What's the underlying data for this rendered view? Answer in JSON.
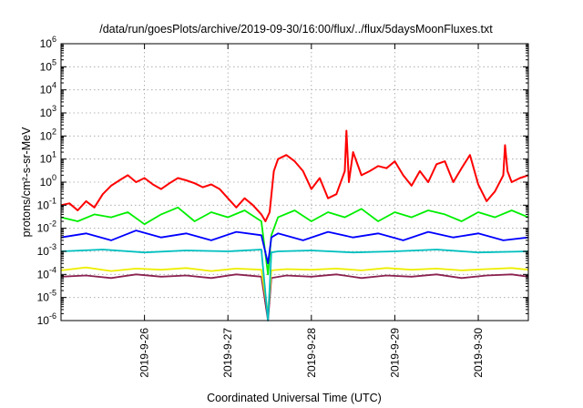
{
  "chart_data": {
    "type": "line",
    "title": "/data/run/goesPlots/archive/2019-09-30/16:00/flux/../flux/5daysMoonFluxes.txt",
    "xlabel": "Coordinated Universal Time (UTC)",
    "ylabel": "protons/cm²-s-sr-MeV",
    "y_scale": "log",
    "ylim": [
      1e-06,
      1000000.0
    ],
    "xlim": [
      0,
      5.6
    ],
    "x_tick_labels": [
      "2019-9-26",
      "2019-9-27",
      "2019-9-28",
      "2019-9-29",
      "2019-9-30"
    ],
    "x_tick_positions": [
      1,
      2,
      3,
      4,
      5
    ],
    "y_tick_exponents": [
      -6,
      -5,
      -4,
      -3,
      -2,
      -1,
      0,
      1,
      2,
      3,
      4,
      5,
      6
    ],
    "grid": true,
    "legend": "none",
    "series": [
      {
        "color": "#ff0000",
        "x": [
          0,
          0.1,
          0.2,
          0.3,
          0.4,
          0.5,
          0.6,
          0.7,
          0.8,
          0.9,
          1.0,
          1.1,
          1.2,
          1.3,
          1.4,
          1.5,
          1.6,
          1.7,
          1.8,
          1.9,
          2.0,
          2.1,
          2.2,
          2.3,
          2.4,
          2.45,
          2.5,
          2.55,
          2.6,
          2.7,
          2.8,
          2.9,
          3.0,
          3.1,
          3.2,
          3.3,
          3.4,
          3.42,
          3.45,
          3.5,
          3.6,
          3.7,
          3.8,
          3.9,
          4.0,
          4.1,
          4.2,
          4.3,
          4.4,
          4.5,
          4.6,
          4.7,
          4.8,
          4.9,
          5.0,
          5.1,
          5.2,
          5.3,
          5.32,
          5.35,
          5.4,
          5.5,
          5.6
        ],
        "values": [
          0.1,
          0.12,
          0.06,
          0.15,
          0.08,
          0.3,
          0.7,
          1.2,
          2.0,
          1.0,
          1.5,
          0.8,
          0.5,
          0.9,
          1.5,
          1.2,
          0.9,
          0.6,
          0.8,
          0.5,
          0.2,
          0.08,
          0.2,
          0.1,
          0.04,
          0.02,
          0.05,
          3.0,
          10.0,
          15.0,
          8.0,
          3.0,
          0.5,
          1.5,
          0.2,
          0.3,
          3.0,
          170.0,
          1.0,
          20.0,
          2.0,
          3.0,
          5.0,
          4.0,
          8.0,
          2.0,
          0.7,
          3.0,
          1.0,
          6.0,
          8.0,
          1.0,
          4.0,
          15.0,
          0.8,
          0.15,
          0.4,
          2.0,
          40.0,
          3.0,
          1.0,
          1.5,
          2.0
        ]
      },
      {
        "color": "#00ee00",
        "x": [
          0,
          0.2,
          0.4,
          0.6,
          0.8,
          1.0,
          1.2,
          1.4,
          1.6,
          1.8,
          2.0,
          2.2,
          2.4,
          2.48,
          2.52,
          2.6,
          2.8,
          3.0,
          3.2,
          3.4,
          3.6,
          3.8,
          4.0,
          4.2,
          4.4,
          4.6,
          4.8,
          5.0,
          5.2,
          5.4,
          5.6
        ],
        "values": [
          0.03,
          0.02,
          0.04,
          0.03,
          0.05,
          0.015,
          0.04,
          0.08,
          0.02,
          0.05,
          0.03,
          0.06,
          0.02,
          0.0001,
          0.005,
          0.03,
          0.06,
          0.02,
          0.05,
          0.03,
          0.07,
          0.02,
          0.05,
          0.03,
          0.06,
          0.04,
          0.02,
          0.05,
          0.03,
          0.06,
          0.03
        ]
      },
      {
        "color": "#0000ff",
        "x": [
          0,
          0.3,
          0.6,
          0.9,
          1.2,
          1.5,
          1.8,
          2.1,
          2.4,
          2.48,
          2.52,
          2.6,
          2.9,
          3.2,
          3.5,
          3.8,
          4.1,
          4.4,
          4.7,
          5.0,
          5.3,
          5.6
        ],
        "values": [
          0.004,
          0.006,
          0.003,
          0.008,
          0.004,
          0.006,
          0.003,
          0.007,
          0.005,
          0.0003,
          0.004,
          0.006,
          0.003,
          0.007,
          0.004,
          0.006,
          0.003,
          0.007,
          0.004,
          0.006,
          0.003,
          0.004
        ]
      },
      {
        "color": "#00bfbf",
        "x": [
          0,
          0.5,
          1.0,
          1.5,
          2.0,
          2.4,
          2.48,
          2.52,
          2.6,
          3.0,
          3.5,
          4.0,
          4.5,
          5.0,
          5.6
        ],
        "values": [
          0.001,
          0.0012,
          0.0009,
          0.0011,
          0.001,
          0.0012,
          1e-06,
          0.0009,
          0.001,
          0.0011,
          0.0009,
          0.001,
          0.0012,
          0.0009,
          0.001
        ]
      },
      {
        "color": "#eeee00",
        "x": [
          0,
          0.3,
          0.6,
          0.9,
          1.2,
          1.5,
          1.8,
          2.1,
          2.4,
          2.48,
          2.52,
          2.7,
          3.0,
          3.3,
          3.6,
          3.9,
          4.2,
          4.5,
          4.8,
          5.1,
          5.4,
          5.6
        ],
        "values": [
          0.00015,
          0.0002,
          0.00014,
          0.00018,
          0.00016,
          0.00019,
          0.00014,
          0.00018,
          0.00016,
          2e-06,
          0.00015,
          0.00017,
          0.00016,
          0.00018,
          0.00015,
          0.00019,
          0.00016,
          0.00018,
          0.00015,
          0.00017,
          0.00019,
          0.00016
        ]
      },
      {
        "color": "#8b2252",
        "x": [
          0,
          0.3,
          0.6,
          0.9,
          1.2,
          1.5,
          1.8,
          2.1,
          2.4,
          2.48,
          2.52,
          2.7,
          3.0,
          3.3,
          3.6,
          3.9,
          4.2,
          4.5,
          4.8,
          5.1,
          5.4,
          5.6
        ],
        "values": [
          8e-05,
          9e-05,
          7e-05,
          0.0001,
          8e-05,
          9e-05,
          7e-05,
          0.0001,
          8e-05,
          1e-06,
          7e-05,
          9e-05,
          8e-05,
          0.0001,
          7e-05,
          9e-05,
          8e-05,
          0.0001,
          7e-05,
          9e-05,
          0.0001,
          8e-05
        ]
      }
    ]
  }
}
